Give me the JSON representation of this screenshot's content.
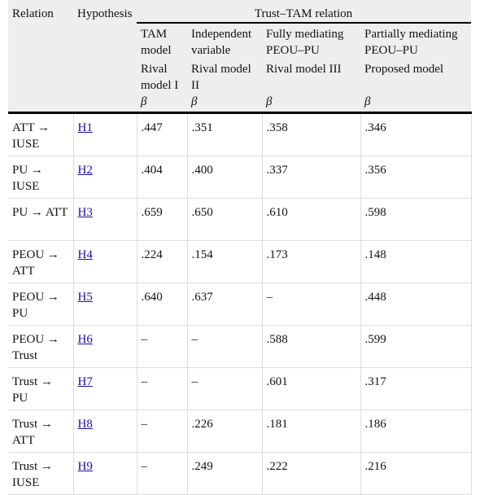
{
  "header": {
    "relation": "Relation",
    "hypothesis": "Hypothesis",
    "group": "Trust–TAM relation",
    "columns": [
      {
        "model": "TAM model",
        "rival": "Rival model I",
        "stat": "β"
      },
      {
        "model": "Independent variable",
        "rival": "Rival model II",
        "stat": "β"
      },
      {
        "model": "Fully mediating PEOU–PU",
        "rival": "Rival model III",
        "stat": "β"
      },
      {
        "model": "Partially mediating PEOU–PU",
        "rival": "Proposed model",
        "stat": "β"
      }
    ]
  },
  "table": {
    "rows": [
      {
        "relation": "ATT → IUSE",
        "hypothesis": "H1",
        "values": [
          ".447",
          ".351",
          ".358",
          ".346"
        ]
      },
      {
        "relation": "PU → IUSE",
        "hypothesis": "H2",
        "values": [
          ".404",
          ".400",
          ".337",
          ".356"
        ]
      },
      {
        "relation": "PU → ATT",
        "hypothesis": "H3",
        "values": [
          ".659",
          ".650",
          ".610",
          ".598"
        ]
      },
      {
        "relation": "PEOU → ATT",
        "hypothesis": "H4",
        "values": [
          ".224",
          ".154",
          ".173",
          ".148"
        ]
      },
      {
        "relation": "PEOU → PU",
        "hypothesis": "H5",
        "values": [
          ".640",
          ".637",
          "–",
          ".448"
        ]
      },
      {
        "relation": "PEOU → Trust",
        "hypothesis": "H6",
        "values": [
          "–",
          "–",
          ".588",
          ".599"
        ]
      },
      {
        "relation": "Trust → PU",
        "hypothesis": "H7",
        "values": [
          "–",
          "–",
          ".601",
          ".317"
        ]
      },
      {
        "relation": "Trust → ATT",
        "hypothesis": "H8",
        "values": [
          "–",
          ".226",
          ".181",
          ".186"
        ]
      },
      {
        "relation": "Trust → IUSE",
        "hypothesis": "H9",
        "values": [
          "–",
          ".249",
          ".222",
          ".216"
        ]
      }
    ]
  }
}
